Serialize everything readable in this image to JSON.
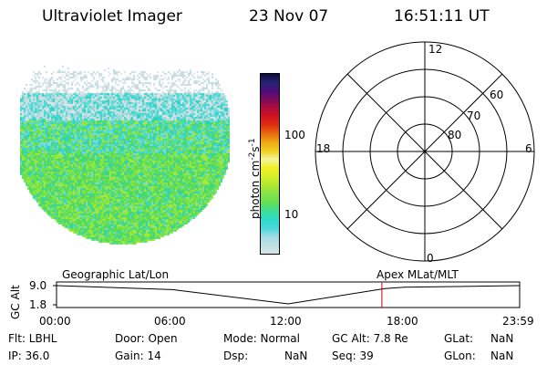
{
  "header": {
    "title": "Ultraviolet Imager",
    "date": "23 Nov 07",
    "time": "16:51:11 UT"
  },
  "colorbar": {
    "unit_label": "photon cm",
    "unit_sup1": "-2",
    "unit_s": "s",
    "unit_sup2": "-1",
    "ticks": [
      {
        "label": "100",
        "value": 100
      },
      {
        "label": "10",
        "value": 10
      }
    ],
    "colors": [
      "#d8e4e8",
      "#c0e0e4",
      "#9fdce4",
      "#49d8dc",
      "#30dcc8",
      "#40dc98",
      "#66e050",
      "#86e24a",
      "#b0e830",
      "#d4ee2a",
      "#f0f020",
      "#f4f4a0",
      "#f0d020",
      "#f0a818",
      "#e86c10",
      "#e03010",
      "#d0141e",
      "#b00c3c",
      "#7c0a5c",
      "#4c0c7c",
      "#242474",
      "#0c0c3c"
    ]
  },
  "polar_plot": {
    "mlt_labels": [
      "12",
      "18",
      "6",
      "0"
    ],
    "lat_labels": [
      "60",
      "70",
      "80"
    ]
  },
  "timeline": {
    "axis_label": "GC Alt",
    "left_label": "Geographic Lat/Lon",
    "right_label": "Apex MLat/MLT",
    "ytick_top": "9.0",
    "ytick_bottom": "1.8",
    "xticks": [
      "00:00",
      "06:00",
      "12:00",
      "18:00",
      "23:59"
    ]
  },
  "chart_data": {
    "type": "line",
    "title": "",
    "xlabel": "",
    "ylabel": "GC Alt",
    "x": [
      "00:00",
      "06:00",
      "12:00",
      "17:00",
      "18:00",
      "23:59"
    ],
    "series": [
      {
        "values": [
          9.0,
          7.4,
          1.8,
          7.8,
          8.4,
          9.0
        ]
      }
    ],
    "ylim": [
      1.8,
      9.0
    ],
    "current_time": "16:51",
    "marker_color": "#cc0000"
  },
  "status": {
    "flt": "Flt: LBHL",
    "ip": "IP: 36.0",
    "door": "Door: Open",
    "gain": "Gain: 14",
    "mode": "Mode: Normal",
    "dsp": "Dsp:",
    "dsp_value": "NaN",
    "gc_alt": "GC Alt: 7.8 Re",
    "seq": "Seq: 39",
    "glat": "GLat:",
    "glat_value": "NaN",
    "glon": "GLon:",
    "glon_value": "NaN"
  }
}
